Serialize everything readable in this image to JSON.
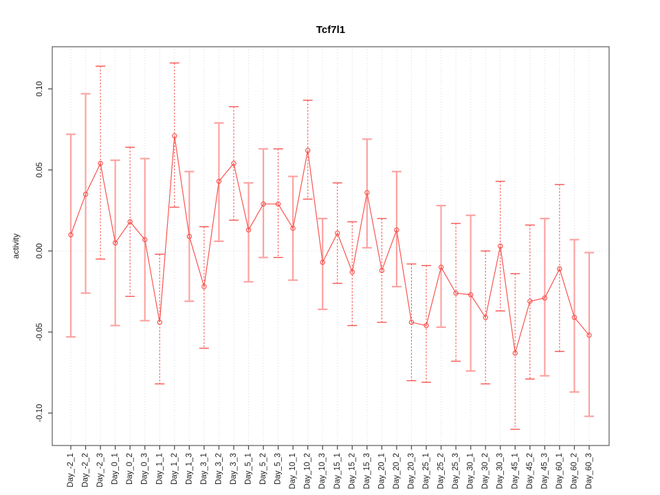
{
  "chart_data": {
    "type": "line",
    "title": "Tcf7l1",
    "ylabel": "activity",
    "xlabel": "",
    "legend": "none",
    "grid": "vertical-dotted-gridlines-plus-dotted-zero-line",
    "ylim": [
      -0.12,
      0.126
    ],
    "yticks": [
      -0.1,
      -0.05,
      0.0,
      0.05,
      0.1
    ],
    "ytick_labels": [
      "-0.10",
      "-0.05",
      "0.00",
      "0.05",
      "0.10"
    ],
    "colors": {
      "series": "#f8534f",
      "errorbar_solid": "#fba3a1",
      "errorbar_dashed": "#f8534f",
      "grid": "#d9d9d9",
      "axis": "#4d4d4d",
      "box": "#666666"
    },
    "categories": [
      "Day_-2_1",
      "Day_-2_2",
      "Day_-2_3",
      "Day_0_1",
      "Day_0_2",
      "Day_0_3",
      "Day_1_1",
      "Day_1_2",
      "Day_1_3",
      "Day_3_1",
      "Day_3_2",
      "Day_3_3",
      "Day_5_1",
      "Day_5_2",
      "Day_5_3",
      "Day_10_1",
      "Day_10_2",
      "Day_10_3",
      "Day_15_1",
      "Day_15_2",
      "Day_15_3",
      "Day_20_1",
      "Day_20_2",
      "Day_20_3",
      "Day_25_1",
      "Day_25_2",
      "Day_25_3",
      "Day_30_1",
      "Day_30_2",
      "Day_30_3",
      "Day_45_1",
      "Day_45_2",
      "Day_45_3",
      "Day_60_1",
      "Day_60_2",
      "Day_60_3"
    ],
    "points": [
      {
        "label": "Day_-2_1",
        "value": 0.01,
        "lower": -0.053,
        "upper": 0.072,
        "dashed": false
      },
      {
        "label": "Day_-2_2",
        "value": 0.035,
        "lower": -0.026,
        "upper": 0.097,
        "dashed": false
      },
      {
        "label": "Day_-2_3",
        "value": 0.054,
        "lower": -0.005,
        "upper": 0.114,
        "dashed": true
      },
      {
        "label": "Day_0_1",
        "value": 0.005,
        "lower": -0.046,
        "upper": 0.056,
        "dashed": false
      },
      {
        "label": "Day_0_2",
        "value": 0.018,
        "lower": -0.028,
        "upper": 0.064,
        "dashed": true
      },
      {
        "label": "Day_0_3",
        "value": 0.007,
        "lower": -0.043,
        "upper": 0.057,
        "dashed": false
      },
      {
        "label": "Day_1_1",
        "value": -0.044,
        "lower": -0.082,
        "upper": -0.002,
        "dashed": true
      },
      {
        "label": "Day_1_2",
        "value": 0.071,
        "lower": 0.027,
        "upper": 0.116,
        "dashed": true
      },
      {
        "label": "Day_1_3",
        "value": 0.009,
        "lower": -0.031,
        "upper": 0.049,
        "dashed": false
      },
      {
        "label": "Day_3_1",
        "value": -0.022,
        "lower": -0.06,
        "upper": 0.015,
        "dashed": true
      },
      {
        "label": "Day_3_2",
        "value": 0.043,
        "lower": 0.006,
        "upper": 0.079,
        "dashed": false
      },
      {
        "label": "Day_3_3",
        "value": 0.054,
        "lower": 0.019,
        "upper": 0.089,
        "dashed": true
      },
      {
        "label": "Day_5_1",
        "value": 0.013,
        "lower": -0.019,
        "upper": 0.042,
        "dashed": false
      },
      {
        "label": "Day_5_2",
        "value": 0.029,
        "lower": -0.004,
        "upper": 0.063,
        "dashed": false
      },
      {
        "label": "Day_5_3",
        "value": 0.029,
        "lower": -0.004,
        "upper": 0.063,
        "dashed": true
      },
      {
        "label": "Day_10_1",
        "value": 0.014,
        "lower": -0.018,
        "upper": 0.046,
        "dashed": false
      },
      {
        "label": "Day_10_2",
        "value": 0.062,
        "lower": 0.032,
        "upper": 0.093,
        "dashed": true
      },
      {
        "label": "Day_10_3",
        "value": -0.007,
        "lower": -0.036,
        "upper": 0.02,
        "dashed": false
      },
      {
        "label": "Day_15_1",
        "value": 0.011,
        "lower": -0.02,
        "upper": 0.042,
        "dashed": true
      },
      {
        "label": "Day_15_2",
        "value": -0.013,
        "lower": -0.046,
        "upper": 0.018,
        "dashed": true
      },
      {
        "label": "Day_15_3",
        "value": 0.036,
        "lower": 0.002,
        "upper": 0.069,
        "dashed": false
      },
      {
        "label": "Day_20_1",
        "value": -0.012,
        "lower": -0.044,
        "upper": 0.02,
        "dashed": true
      },
      {
        "label": "Day_20_2",
        "value": 0.013,
        "lower": -0.022,
        "upper": 0.049,
        "dashed": false
      },
      {
        "label": "Day_20_3",
        "value": -0.044,
        "lower": -0.08,
        "upper": -0.008,
        "dashed": true
      },
      {
        "label": "Day_25_1",
        "value": -0.046,
        "lower": -0.081,
        "upper": -0.009,
        "dashed": true
      },
      {
        "label": "Day_25_2",
        "value": -0.01,
        "lower": -0.047,
        "upper": 0.028,
        "dashed": false
      },
      {
        "label": "Day_25_3",
        "value": -0.026,
        "lower": -0.068,
        "upper": 0.017,
        "dashed": true
      },
      {
        "label": "Day_30_1",
        "value": -0.027,
        "lower": -0.074,
        "upper": 0.022,
        "dashed": false
      },
      {
        "label": "Day_30_2",
        "value": -0.041,
        "lower": -0.082,
        "upper": 0.0,
        "dashed": true
      },
      {
        "label": "Day_30_3",
        "value": 0.003,
        "lower": -0.037,
        "upper": 0.043,
        "dashed": true
      },
      {
        "label": "Day_45_1",
        "value": -0.063,
        "lower": -0.11,
        "upper": -0.014,
        "dashed": true
      },
      {
        "label": "Day_45_2",
        "value": -0.031,
        "lower": -0.079,
        "upper": 0.016,
        "dashed": true
      },
      {
        "label": "Day_45_3",
        "value": -0.029,
        "lower": -0.077,
        "upper": 0.02,
        "dashed": false
      },
      {
        "label": "Day_60_1",
        "value": -0.011,
        "lower": -0.062,
        "upper": 0.041,
        "dashed": true
      },
      {
        "label": "Day_60_2",
        "value": -0.041,
        "lower": -0.087,
        "upper": 0.007,
        "dashed": false
      },
      {
        "label": "Day_60_3",
        "value": -0.052,
        "lower": -0.102,
        "upper": -0.001,
        "dashed": false
      }
    ]
  }
}
